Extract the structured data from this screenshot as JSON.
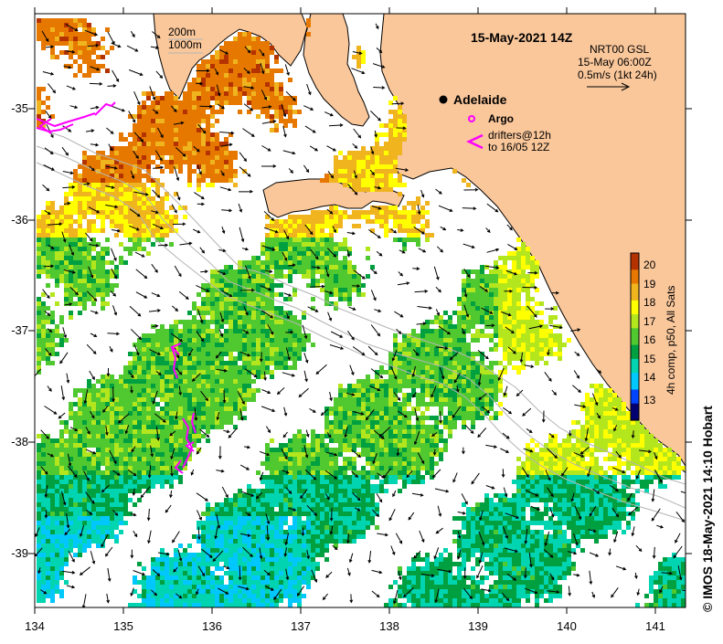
{
  "map": {
    "title": "15-May-2021 14Z",
    "product_lines": [
      "NRT00 GSL",
      "15-May 06:00Z",
      "0.5m/s (1kt 24h)"
    ],
    "depth_contour_labels": [
      "200m",
      "1000m"
    ],
    "place_label": "Adelaide",
    "legend": {
      "argo_label": "Argo",
      "drifter_label_lines": [
        "drifters@12h",
        "to 16/05 12Z"
      ]
    },
    "colorbar": {
      "title": "4h comp, p50, All Sats",
      "ticks": [
        "20",
        "19",
        "18",
        "17",
        "16",
        "15",
        "14",
        "13"
      ]
    },
    "x_ticks": [
      "134",
      "135",
      "136",
      "137",
      "138",
      "139",
      "140",
      "141"
    ],
    "y_ticks": [
      "-35",
      "-36",
      "-37",
      "-38",
      "-39"
    ],
    "credit": "© IMOS 18-May-2021 14:10 Hobart",
    "colors": {
      "land": "#fac79b",
      "contour": "#b4b4b4",
      "argo": "#ff00ff",
      "drifter": "#ff00ff",
      "colormap": [
        "#000070",
        "#0044ff",
        "#00c8ff",
        "#00d4b0",
        "#00a040",
        "#50c830",
        "#b4e61e",
        "#ffff00",
        "#f0b41e",
        "#e67800",
        "#b43200"
      ]
    }
  }
}
